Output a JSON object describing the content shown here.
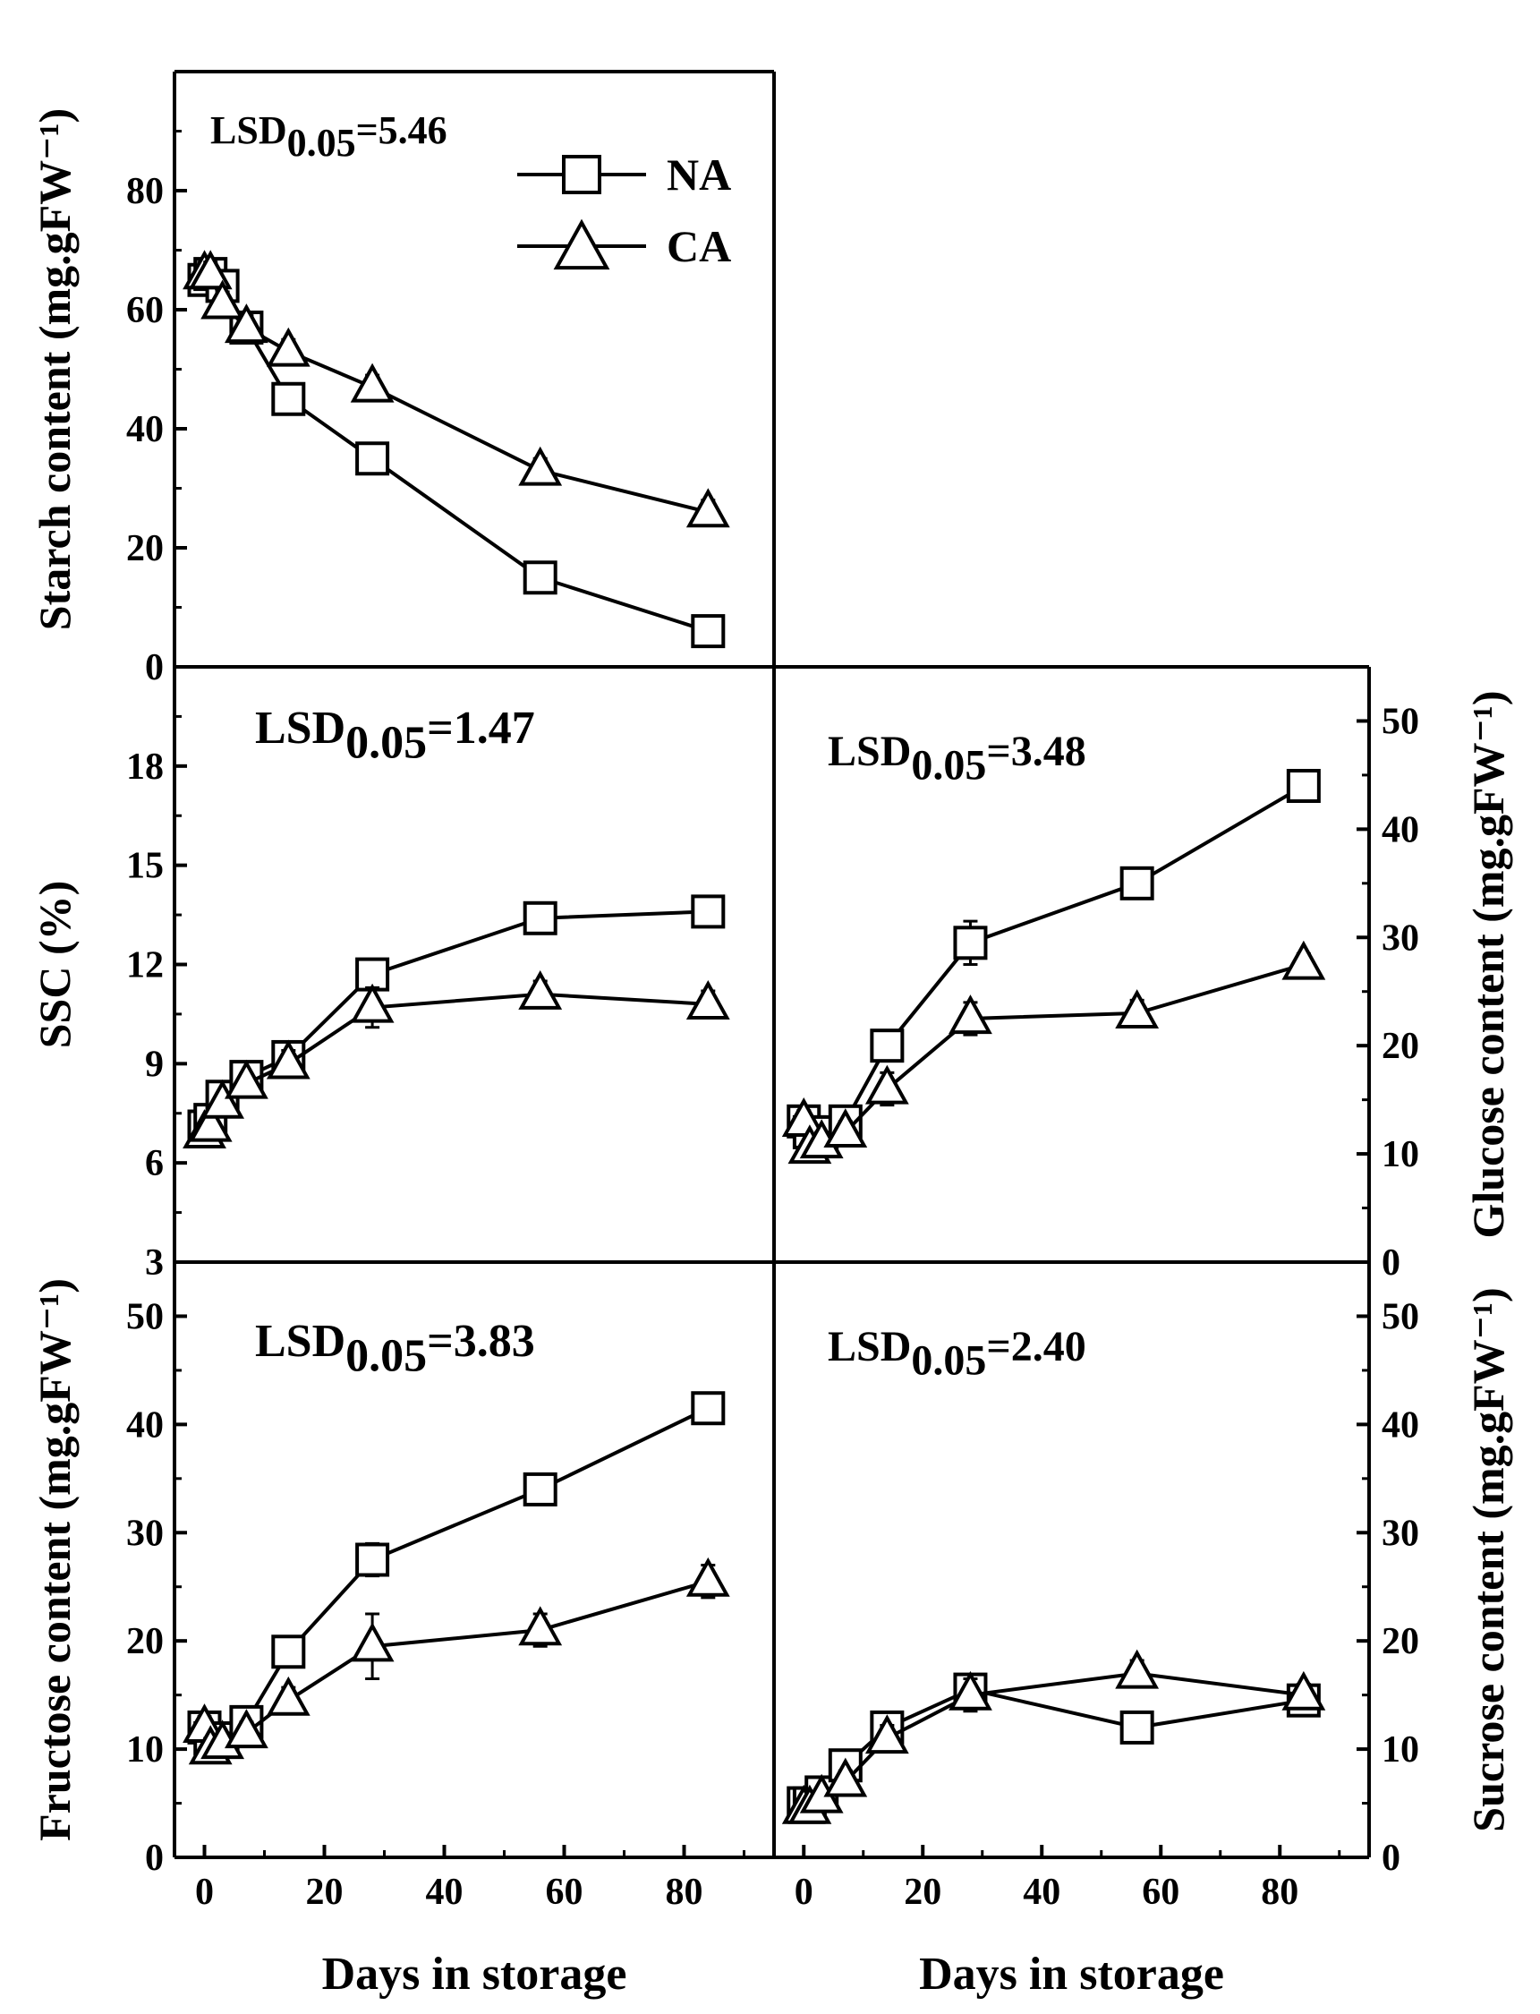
{
  "chart_data": [
    {
      "id": "starch",
      "type": "line",
      "ylabel": "Starch content (mg.gFW⁻¹)",
      "ylabel_side": "left",
      "ylim": [
        0,
        100
      ],
      "yticks": [
        0,
        20,
        40,
        60,
        80
      ],
      "lsd_base": "LSD",
      "lsd_sub": "0.05",
      "lsd_value": "=5.46",
      "legend": {
        "position": "top-right",
        "entries": [
          {
            "name": "NA",
            "marker": "square"
          },
          {
            "name": "CA",
            "marker": "triangle"
          }
        ]
      },
      "series": [
        {
          "name": "NA",
          "marker": "square",
          "x": [
            0,
            1,
            3,
            7,
            14,
            28,
            56,
            84
          ],
          "values": [
            65,
            66,
            64,
            57,
            45,
            35,
            15,
            6
          ],
          "err": [
            2,
            2,
            2,
            2,
            2,
            2,
            2,
            2
          ]
        },
        {
          "name": "CA",
          "marker": "triangle",
          "x": [
            0,
            1,
            3,
            7,
            14,
            28,
            56,
            84
          ],
          "values": [
            66,
            66,
            61,
            57,
            53,
            47,
            33,
            26
          ],
          "err": [
            2,
            2,
            2,
            2,
            2,
            2,
            2,
            2
          ]
        }
      ]
    },
    {
      "id": "ssc",
      "type": "line",
      "ylabel": "SSC (%)",
      "ylabel_side": "left",
      "ylim": [
        3,
        21
      ],
      "yticks": [
        3,
        6,
        9,
        12,
        15,
        18
      ],
      "lsd_base": "LSD",
      "lsd_sub": "0.05",
      "lsd_value": "=1.47",
      "series": [
        {
          "name": "NA",
          "marker": "square",
          "x": [
            0,
            1,
            3,
            7,
            14,
            28,
            56,
            84
          ],
          "values": [
            7.1,
            7.3,
            8.0,
            8.6,
            9.2,
            11.7,
            13.4,
            13.6
          ],
          "err": [
            0.3,
            0.3,
            0.3,
            0.3,
            0.3,
            0.4,
            0.3,
            0.3
          ]
        },
        {
          "name": "CA",
          "marker": "triangle",
          "x": [
            0,
            1,
            3,
            7,
            14,
            28,
            56,
            84
          ],
          "values": [
            6.9,
            7.1,
            7.8,
            8.4,
            9.0,
            10.7,
            11.1,
            10.8
          ],
          "err": [
            0.3,
            0.3,
            0.3,
            0.3,
            0.4,
            0.6,
            0.4,
            0.4
          ]
        }
      ]
    },
    {
      "id": "glucose",
      "type": "line",
      "ylabel": "Glucose content (mg.gFW⁻¹)",
      "ylabel_side": "right",
      "ylim": [
        0,
        55
      ],
      "yticks": [
        0,
        10,
        20,
        30,
        40,
        50
      ],
      "lsd_base": "LSD",
      "lsd_sub": "0.05",
      "lsd_value": "=3.48",
      "series": [
        {
          "name": "NA",
          "marker": "square",
          "x": [
            0,
            1,
            3,
            7,
            14,
            28,
            56,
            84
          ],
          "values": [
            13,
            12,
            12,
            13,
            20,
            29.5,
            35,
            44
          ],
          "err": [
            1,
            1,
            1,
            1,
            1.2,
            2,
            1,
            1
          ]
        },
        {
          "name": "CA",
          "marker": "triangle",
          "x": [
            0,
            1,
            3,
            7,
            14,
            28,
            56,
            84
          ],
          "values": [
            13,
            10.5,
            11,
            12,
            16,
            22.5,
            23,
            27.5
          ],
          "err": [
            1,
            1,
            1,
            1,
            1.5,
            1.5,
            1.2,
            1
          ]
        }
      ]
    },
    {
      "id": "fructose",
      "type": "line",
      "ylabel": "Fructose content (mg.gFW⁻¹)",
      "ylabel_side": "left",
      "ylim": [
        0,
        55
      ],
      "yticks": [
        0,
        10,
        20,
        30,
        40,
        50
      ],
      "lsd_base": "LSD",
      "lsd_sub": "0.05",
      "lsd_value": "=3.83",
      "xlabel": "Days in storage",
      "xticks": [
        0,
        20,
        40,
        60,
        80
      ],
      "series": [
        {
          "name": "NA",
          "marker": "square",
          "x": [
            0,
            1,
            3,
            7,
            14,
            28,
            56,
            84
          ],
          "values": [
            12,
            11,
            11,
            12.5,
            19,
            27.5,
            34,
            41.5
          ],
          "err": [
            1,
            1,
            1,
            1,
            1,
            1.5,
            1.2,
            1
          ]
        },
        {
          "name": "CA",
          "marker": "triangle",
          "x": [
            0,
            1,
            3,
            7,
            14,
            28,
            56,
            84
          ],
          "values": [
            12,
            10,
            10.5,
            11.5,
            14.5,
            19.5,
            21,
            25.5
          ],
          "err": [
            1,
            1,
            1,
            1,
            1.2,
            3,
            1.5,
            1.5
          ]
        }
      ]
    },
    {
      "id": "sucrose",
      "type": "line",
      "ylabel": "Sucrose content (mg.gFW⁻¹)",
      "ylabel_side": "right",
      "ylim": [
        0,
        55
      ],
      "yticks": [
        0,
        10,
        20,
        30,
        40,
        50
      ],
      "lsd_base": "LSD",
      "lsd_sub": "0.05",
      "lsd_value": "=2.40",
      "xlabel": "Days in storage",
      "xticks": [
        0,
        20,
        40,
        60,
        80
      ],
      "series": [
        {
          "name": "NA",
          "marker": "square",
          "x": [
            0,
            1,
            3,
            7,
            14,
            28,
            56,
            84
          ],
          "values": [
            5,
            5,
            6,
            8.5,
            12,
            15.5,
            12,
            14.5
          ],
          "err": [
            0.8,
            0.8,
            0.8,
            0.8,
            1,
            1,
            1,
            1
          ]
        },
        {
          "name": "CA",
          "marker": "triangle",
          "x": [
            0,
            1,
            3,
            7,
            14,
            28,
            56,
            84
          ],
          "values": [
            4.5,
            4.5,
            5.5,
            7,
            11,
            15,
            17,
            15
          ],
          "err": [
            0.8,
            0.8,
            0.8,
            1,
            1.2,
            1.5,
            1.2,
            1
          ]
        }
      ]
    }
  ]
}
